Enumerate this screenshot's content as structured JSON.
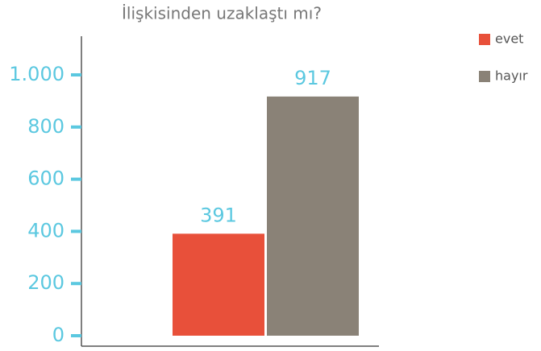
{
  "chart_data": {
    "type": "bar",
    "title": "İlişkisinden uzaklaştı mı?",
    "categories": [
      null
    ],
    "series": [
      {
        "name": "evet",
        "color": "#e8503a",
        "values": [
          391
        ]
      },
      {
        "name": "hayır",
        "color": "#8a8277",
        "values": [
          917
        ]
      }
    ],
    "ylim": [
      0,
      1000
    ],
    "yticks": [
      0,
      200,
      400,
      600,
      800,
      {
        "value": 1000,
        "label": "1.000"
      }
    ],
    "legend": "right"
  }
}
